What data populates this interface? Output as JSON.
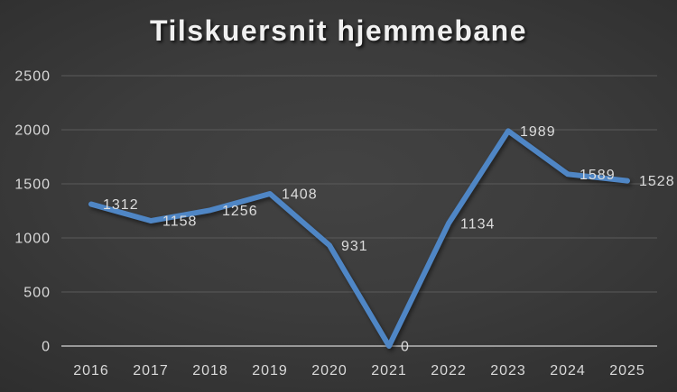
{
  "chart_data": {
    "type": "line",
    "title": "Tilskuersnit hjemmebane",
    "categories": [
      "2016",
      "2017",
      "2018",
      "2019",
      "2020",
      "2021",
      "2022",
      "2023",
      "2024",
      "2025"
    ],
    "series": [
      {
        "name": "Tilskuersnit hjemmebane",
        "values": [
          1312,
          1158,
          1256,
          1408,
          931,
          0,
          1134,
          1989,
          1589,
          1528
        ]
      }
    ],
    "data_labels": [
      "1312",
      "1158",
      "1256",
      "1408",
      "931",
      "0",
      "1134",
      "1989",
      "1589",
      "1528"
    ],
    "xlabel": "",
    "ylabel": "",
    "ylim": [
      0,
      2500
    ],
    "ytick_step": 500,
    "ytick_labels": [
      "0",
      "500",
      "1000",
      "1500",
      "2000",
      "2500"
    ],
    "grid": "horizontal",
    "legend": "none",
    "colors": {
      "line": "#4f86c5",
      "background_center": "#424242",
      "background_edge": "#212121",
      "gridline": "#5a5a5a",
      "axis_line": "#989898",
      "tick_text": "#d9d9d9",
      "data_label_text": "#dcdcdc",
      "title_text": "#f0f0f0"
    }
  }
}
